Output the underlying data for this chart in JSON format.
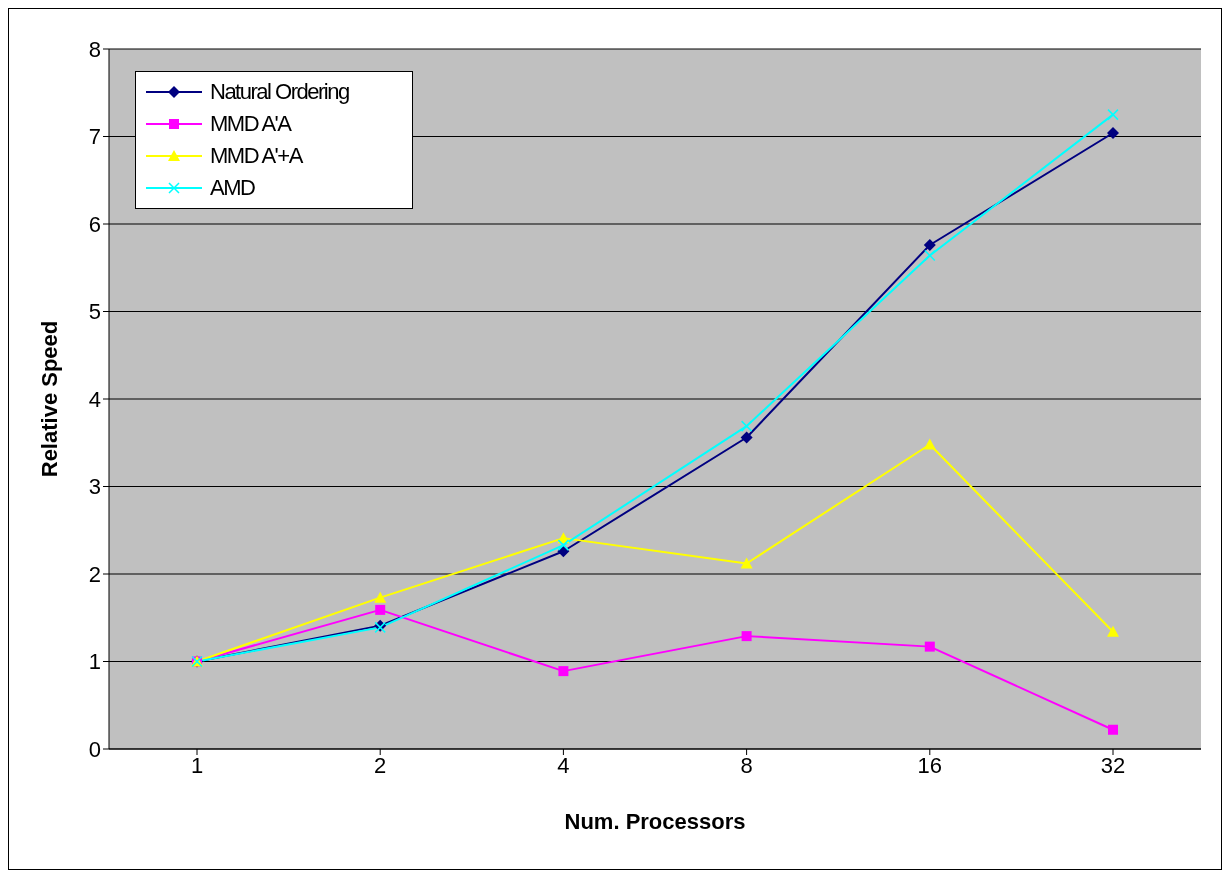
{
  "chart_data": {
    "type": "line",
    "xlabel": "Num. Processors",
    "ylabel": "Relative Speed",
    "categories": [
      "1",
      "2",
      "4",
      "8",
      "16",
      "32"
    ],
    "series": [
      {
        "name": "Natural Ordering",
        "color": "#000080",
        "marker": "diamond",
        "values": [
          1.0,
          1.41,
          2.26,
          3.56,
          5.76,
          7.04
        ]
      },
      {
        "name": "MMD A'A",
        "color": "#ff00ff",
        "marker": "square",
        "values": [
          1.0,
          1.59,
          0.89,
          1.29,
          1.17,
          0.22
        ]
      },
      {
        "name": "MMD A'+A",
        "color": "#ffff00",
        "marker": "triangle",
        "values": [
          1.0,
          1.73,
          2.41,
          2.12,
          3.48,
          1.34
        ]
      },
      {
        "name": "AMD",
        "color": "#00ffff",
        "marker": "cross",
        "values": [
          1.0,
          1.39,
          2.33,
          3.69,
          5.64,
          7.25
        ]
      }
    ],
    "ylim": [
      0,
      8
    ],
    "yticks": [
      0,
      1,
      2,
      3,
      4,
      5,
      6,
      7,
      8
    ],
    "grid": "y",
    "legend": "top left"
  }
}
